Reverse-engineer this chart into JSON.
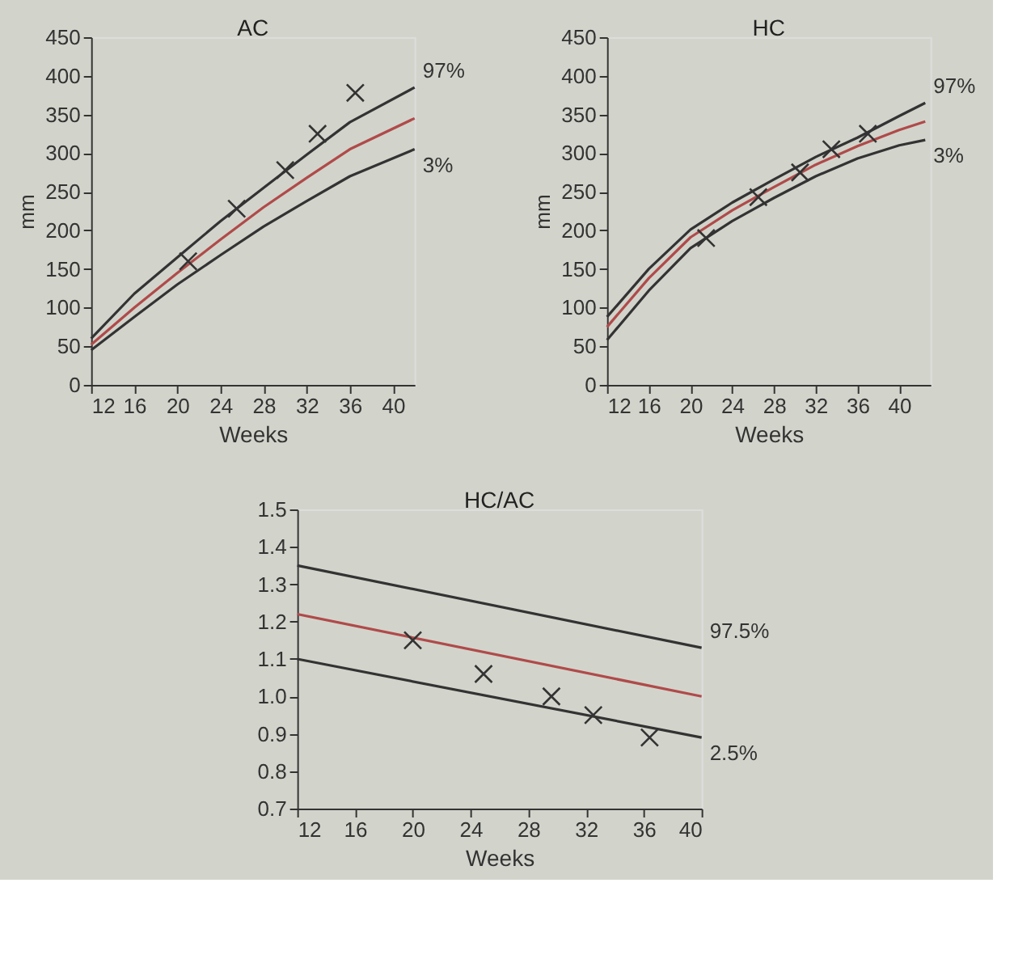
{
  "chart_data": [
    {
      "type": "line",
      "title": "AC",
      "xlabel": "Weeks",
      "ylabel": "mm",
      "xlim": [
        12,
        42
      ],
      "xticks": [
        12,
        16,
        20,
        24,
        28,
        32,
        36,
        40
      ],
      "ylim": [
        0,
        450
      ],
      "yticks": [
        0,
        50,
        100,
        150,
        200,
        250,
        300,
        350,
        400,
        450
      ],
      "grid": false,
      "line_style": "solid",
      "series": [
        {
          "name": "97%",
          "color": "#333333",
          "x": [
            12,
            16,
            20,
            24,
            28,
            32,
            36,
            42
          ],
          "values": [
            60,
            118,
            165,
            212,
            255,
            298,
            340,
            385
          ]
        },
        {
          "color": "#b04a4a",
          "x": [
            12,
            16,
            20,
            24,
            28,
            32,
            36,
            42
          ],
          "values": [
            52,
            100,
            145,
            188,
            230,
            268,
            305,
            345
          ]
        },
        {
          "name": "3%",
          "color": "#333333",
          "x": [
            12,
            16,
            20,
            24,
            28,
            32,
            36,
            42
          ],
          "values": [
            45,
            88,
            130,
            168,
            205,
            238,
            270,
            305
          ]
        },
        {
          "type": "scatter",
          "marker": "cross",
          "color": "#333333",
          "x": [
            21,
            25.5,
            30,
            33,
            36.5
          ],
          "values": [
            160,
            228,
            278,
            325,
            378
          ]
        }
      ]
    },
    {
      "type": "line",
      "title": "HC",
      "xlabel": "Weeks",
      "ylabel": "mm",
      "xlim": [
        12,
        43
      ],
      "xticks": [
        12,
        16,
        20,
        24,
        28,
        32,
        36,
        40
      ],
      "ylim": [
        0,
        450
      ],
      "yticks": [
        0,
        50,
        100,
        150,
        200,
        250,
        300,
        350,
        400,
        450
      ],
      "grid": false,
      "line_style": "solid",
      "series": [
        {
          "name": "97%",
          "color": "#333333",
          "x": [
            12,
            16,
            20,
            24,
            28,
            32,
            36,
            40,
            42.5
          ],
          "values": [
            88,
            150,
            201,
            236,
            266,
            295,
            320,
            348,
            365
          ]
        },
        {
          "color": "#b04a4a",
          "x": [
            12,
            16,
            20,
            24,
            28,
            32,
            36,
            40,
            42.5
          ],
          "values": [
            75,
            138,
            191,
            226,
            256,
            285,
            309,
            330,
            341
          ]
        },
        {
          "name": "3%",
          "color": "#333333",
          "x": [
            12,
            16,
            20,
            24,
            28,
            32,
            36,
            40,
            42.5
          ],
          "values": [
            58,
            122,
            177,
            212,
            242,
            270,
            293,
            310,
            317
          ]
        },
        {
          "type": "scatter",
          "marker": "cross",
          "color": "#333333",
          "x": [
            21.5,
            26.5,
            30.5,
            33.5,
            37
          ],
          "values": [
            190,
            243,
            275,
            305,
            325
          ]
        }
      ]
    },
    {
      "type": "line",
      "title": "HC/AC",
      "xlabel": "Weeks",
      "xlim": [
        12,
        40
      ],
      "xticks": [
        12,
        16,
        20,
        24,
        28,
        32,
        36,
        40
      ],
      "ylim": [
        0.7,
        1.5
      ],
      "yticks": [
        0.7,
        0.8,
        0.9,
        {
          "value": 1.0,
          "label": "1.0"
        },
        1.1,
        1.2,
        1.3,
        1.4,
        1.5
      ],
      "grid": false,
      "line_style": "solid",
      "series": [
        {
          "name": "97.5%",
          "color": "#333333",
          "x": [
            12,
            40
          ],
          "values": [
            1.35,
            1.13
          ]
        },
        {
          "color": "#b04a4a",
          "x": [
            12,
            40
          ],
          "values": [
            1.22,
            1.0
          ]
        },
        {
          "name": "2.5%",
          "color": "#333333",
          "x": [
            12,
            40
          ],
          "values": [
            1.1,
            0.89
          ]
        },
        {
          "type": "scatter",
          "marker": "cross",
          "color": "#333333",
          "x": [
            20,
            24.9,
            29.6,
            32.5,
            36.4
          ],
          "values": [
            1.15,
            1.06,
            1.0,
            0.95,
            0.89
          ]
        }
      ]
    }
  ]
}
